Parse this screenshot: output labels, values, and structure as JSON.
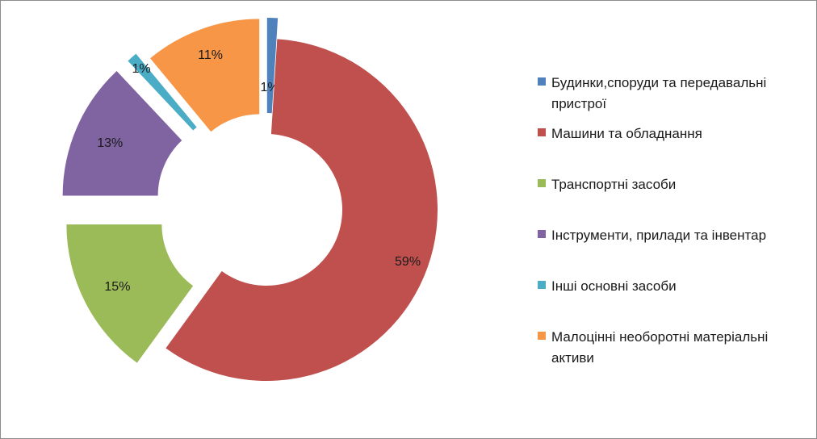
{
  "chart_data": {
    "type": "pie",
    "variant": "exploded-donut",
    "title": "",
    "legend_position": "right",
    "series": [
      {
        "name": "Будинки,споруди та передавальні пристрої",
        "value": 1,
        "label": "1%",
        "color": "#4F81BD"
      },
      {
        "name": "Машини та обладнання",
        "value": 59,
        "label": "59%",
        "color": "#C0504D"
      },
      {
        "name": "Транспортні засоби",
        "value": 15,
        "label": "15%",
        "color": "#9BBB59"
      },
      {
        "name": "Інструменти, прилади та інвентар",
        "value": 13,
        "label": "13%",
        "color": "#8064A2"
      },
      {
        "name": "Інші основні засоби",
        "value": 1,
        "label": "1%",
        "color": "#4BACC6"
      },
      {
        "name": "Малоцінні необоротні матеріальні активи",
        "value": 11,
        "label": "11%",
        "color": "#F79646"
      }
    ]
  }
}
